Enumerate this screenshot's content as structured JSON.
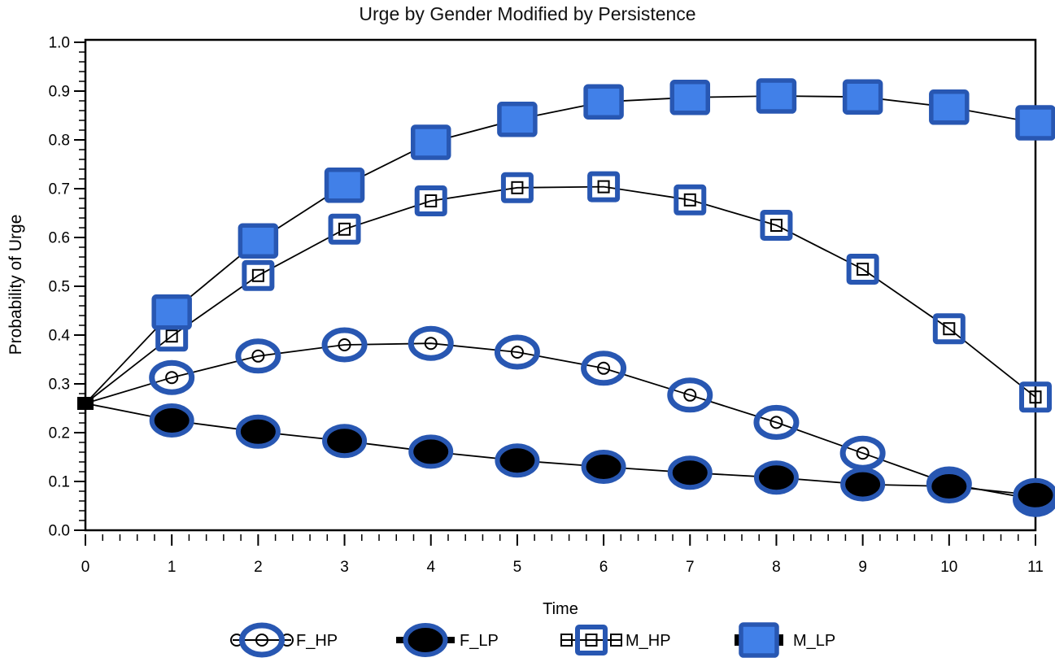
{
  "chart_data": {
    "type": "line",
    "title": "Urge by Gender Modified by Persistence",
    "xlabel": "Time",
    "ylabel": "Probability of Urge",
    "xlim": [
      0,
      11
    ],
    "ylim": [
      0.0,
      1.0
    ],
    "grid": "off",
    "legend_position": "bottom",
    "x": [
      0,
      1,
      2,
      3,
      4,
      5,
      6,
      7,
      8,
      9,
      10,
      11
    ],
    "x_tick_labels": [
      "0",
      "1",
      "2",
      "3",
      "4",
      "5",
      "6",
      "7",
      "8",
      "9",
      "10",
      "11"
    ],
    "y_tick_labels": [
      "0.0",
      "0.1",
      "0.2",
      "0.3",
      "0.4",
      "0.5",
      "0.6",
      "0.7",
      "0.8",
      "0.9",
      "1.0"
    ],
    "y_major_step": 0.1,
    "y_minor_step": 0.02,
    "x_minor_step": 0.2,
    "series": [
      {
        "name": "F_HP",
        "marker": "open-ellipse",
        "values": [
          0.26,
          0.313,
          0.357,
          0.38,
          0.383,
          0.365,
          0.332,
          0.277,
          0.221,
          0.158,
          0.095,
          0.063
        ]
      },
      {
        "name": "F_LP",
        "marker": "filled-ellipse",
        "values": [
          0.26,
          0.225,
          0.202,
          0.183,
          0.161,
          0.143,
          0.13,
          0.118,
          0.108,
          0.094,
          0.09,
          0.072
        ]
      },
      {
        "name": "M_HP",
        "marker": "open-square",
        "values": [
          0.26,
          0.398,
          0.522,
          0.617,
          0.675,
          0.702,
          0.704,
          0.677,
          0.625,
          0.535,
          0.413,
          0.273
        ]
      },
      {
        "name": "M_LP",
        "marker": "filled-square",
        "values": [
          0.26,
          0.447,
          0.593,
          0.707,
          0.795,
          0.842,
          0.878,
          0.887,
          0.89,
          0.888,
          0.867,
          0.835
        ]
      }
    ],
    "origin_marker": {
      "shape": "small-black-square",
      "x": 0,
      "y": 0.26
    },
    "colors": {
      "marker_outline_blue": "#2857b2",
      "marker_fill_blue": "#4180e8",
      "marker_fill_black": "#000000",
      "line": "#000000"
    }
  }
}
